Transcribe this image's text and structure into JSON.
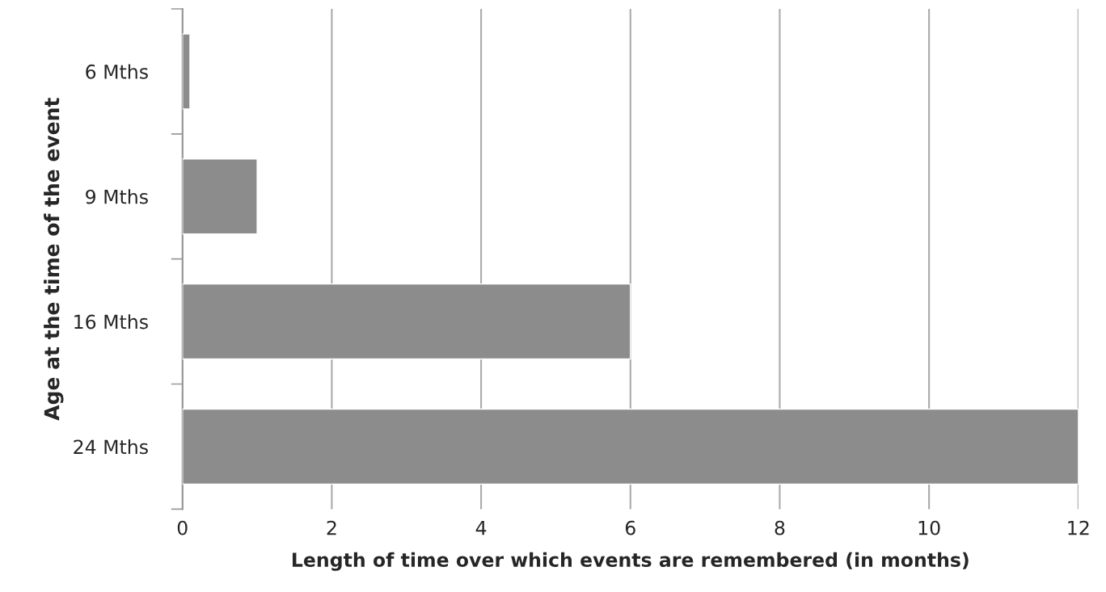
{
  "chart_data": {
    "type": "bar",
    "orientation": "horizontal",
    "xlabel": "Length of time over which events are remembered (in months)",
    "ylabel": "Age at the time of the event",
    "categories": [
      "6 Mths",
      "9 Mths",
      "16 Mths",
      "24 Mths"
    ],
    "values": [
      0.1,
      1,
      6,
      12
    ],
    "color": "#8c8c8c",
    "xlim": [
      0,
      12
    ],
    "xticks": [
      0,
      2,
      4,
      6,
      8,
      10,
      12
    ],
    "grid": "x",
    "legend": false
  }
}
